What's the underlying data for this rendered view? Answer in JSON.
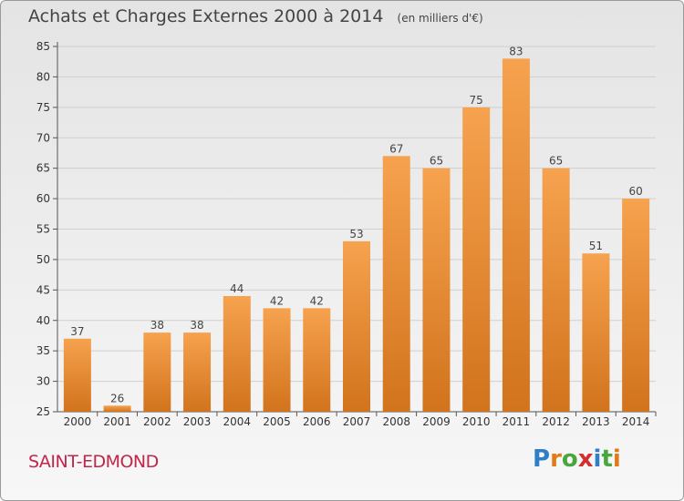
{
  "title": "Achats et Charges Externes 2000 à 2014",
  "unit": "(en milliers d'€)",
  "commune": "SAINT-EDMOND",
  "logo": {
    "letters": [
      "P",
      "r",
      "o",
      "x",
      "i",
      "t",
      "i"
    ],
    "colors": [
      "#2e7fc6",
      "#e07b1a",
      "#49a63f",
      "#d32f2f",
      "#2e7fc6",
      "#49a63f",
      "#e07b1a"
    ]
  },
  "colors": {
    "bar_top": "#f6a24e",
    "bar_bottom": "#d2731d",
    "commune_text": "#c0264a"
  },
  "chart_data": {
    "type": "bar",
    "categories": [
      "2000",
      "2001",
      "2002",
      "2003",
      "2004",
      "2005",
      "2006",
      "2007",
      "2008",
      "2009",
      "2010",
      "2011",
      "2012",
      "2013",
      "2014"
    ],
    "values": [
      37,
      26,
      38,
      38,
      44,
      42,
      42,
      53,
      67,
      65,
      75,
      83,
      65,
      51,
      60
    ],
    "data_labels": [
      "37",
      "26",
      "38",
      "38",
      "44",
      "42",
      "42",
      "53",
      "67",
      "65",
      "75",
      "83",
      "65",
      "51",
      "60"
    ],
    "ylim": [
      25,
      85
    ],
    "yticks": [
      25,
      30,
      35,
      40,
      45,
      50,
      55,
      60,
      65,
      70,
      75,
      80,
      85
    ],
    "ytick_labels": [
      "25",
      "30",
      "35",
      "40",
      "45",
      "50",
      "55",
      "60",
      "65",
      "70",
      "75",
      "80",
      "85"
    ],
    "grid": true
  }
}
